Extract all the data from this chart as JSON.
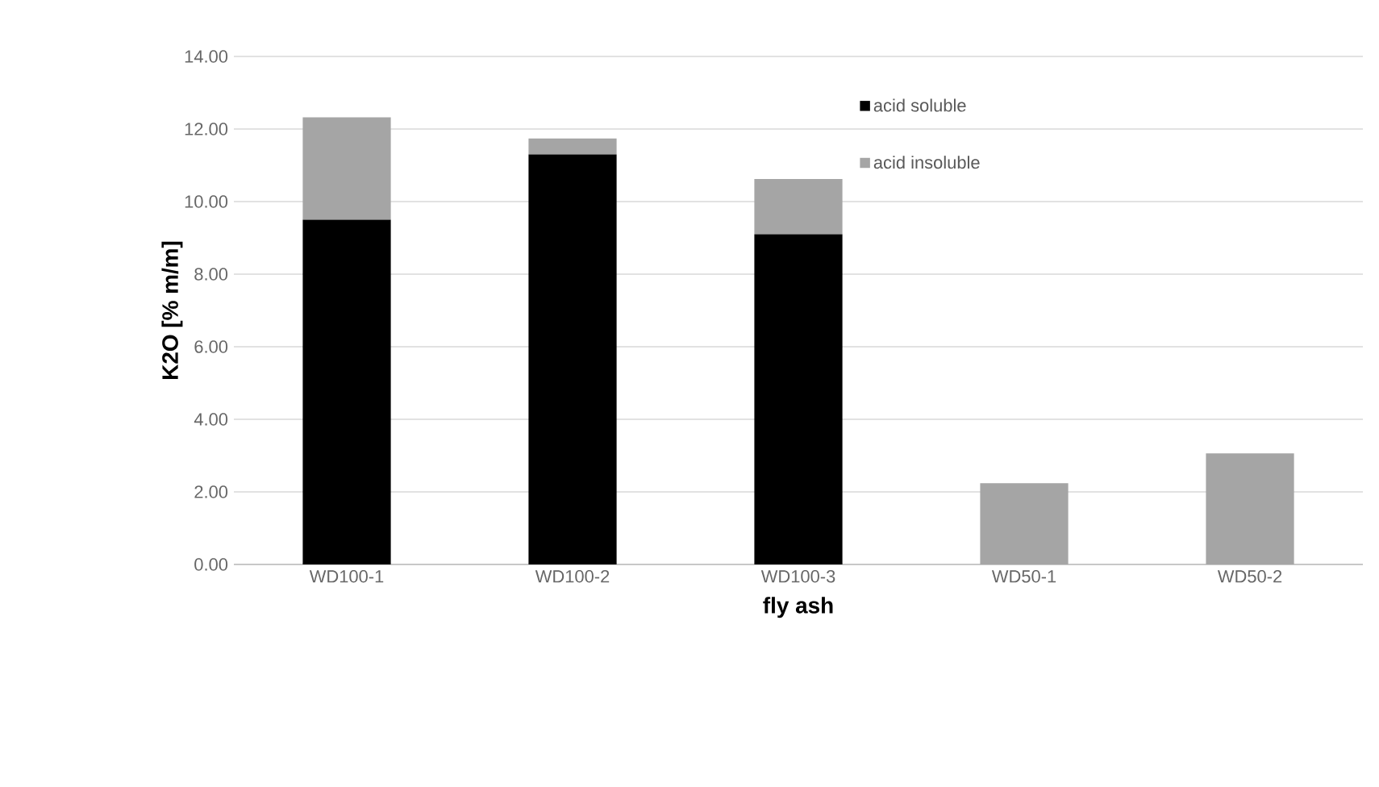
{
  "chart_data": {
    "type": "bar",
    "stacked": true,
    "xlabel": "fly ash",
    "ylabel": "K2O [% m/m]",
    "categories": [
      "WD100-1",
      "WD100-2",
      "WD100-3",
      "WD50-1",
      "WD50-2"
    ],
    "series": [
      {
        "name": "acid soluble",
        "color": "#000000",
        "values": [
          9.5,
          11.3,
          9.1,
          null,
          null
        ]
      },
      {
        "name": "acid insoluble",
        "color": "#a5a5a5",
        "values": [
          2.82,
          0.44,
          1.52,
          2.24,
          3.06
        ]
      }
    ],
    "ylim": [
      0,
      14
    ],
    "yticks": [
      {
        "value": 0,
        "label": "0.00"
      },
      {
        "value": 2,
        "label": "2.00"
      },
      {
        "value": 4,
        "label": "4.00"
      },
      {
        "value": 6,
        "label": "6.00"
      },
      {
        "value": 8,
        "label": "8.00"
      },
      {
        "value": 10,
        "label": "10.00"
      },
      {
        "value": 12,
        "label": "12.00"
      },
      {
        "value": 14,
        "label": "14.00"
      }
    ],
    "grid": "y",
    "legend": "top right"
  }
}
